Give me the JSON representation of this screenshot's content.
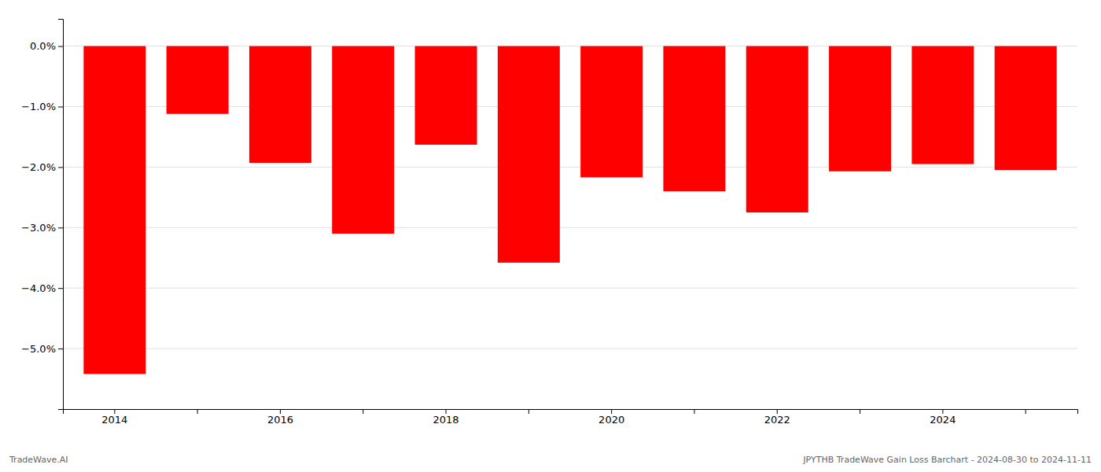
{
  "chart_data": {
    "type": "bar",
    "categories": [
      "2014",
      null,
      "2016",
      null,
      "2018",
      null,
      "2020",
      null,
      "2022",
      null,
      "2024",
      null
    ],
    "values": [
      -5.42,
      -1.12,
      -1.93,
      -3.1,
      -1.63,
      -3.58,
      -2.17,
      -2.4,
      -2.75,
      -2.07,
      -1.95,
      -2.05
    ],
    "color": "#ff0000",
    "ylim": [
      -6.0,
      0.45
    ],
    "yticks": [
      {
        "value": 0.0,
        "label": "0.0%"
      },
      {
        "value": -1.0,
        "label": "−1.0%"
      },
      {
        "value": -2.0,
        "label": "−2.0%"
      },
      {
        "value": -3.0,
        "label": "−3.0%"
      },
      {
        "value": -4.0,
        "label": "−4.0%"
      },
      {
        "value": -5.0,
        "label": "−5.0%"
      }
    ],
    "grid": true,
    "annotations": [
      "TradeWave.AI",
      "JPYTHB TradeWave Gain Loss Barchart - 2024-08-30 to 2024-11-11"
    ]
  }
}
